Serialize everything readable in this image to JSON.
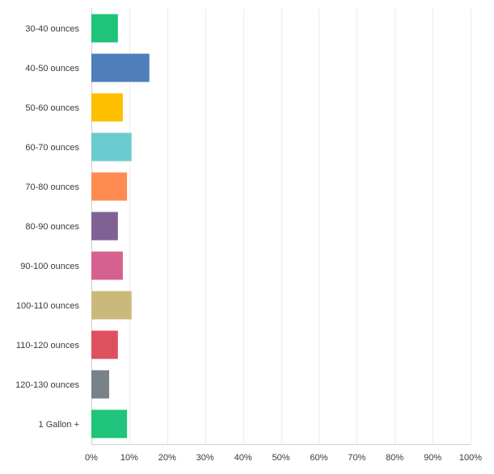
{
  "chart_data": {
    "type": "bar",
    "orientation": "horizontal",
    "categories": [
      "30-40 ounces",
      "40-50 ounces",
      "50-60 ounces",
      "60-70 ounces",
      "70-80 ounces",
      "80-90 ounces",
      "90-100 ounces",
      "100-110 ounces",
      "110-120 ounces",
      "120-130 ounces",
      "1 Gallon +"
    ],
    "values": [
      7,
      15.3,
      8.3,
      10.6,
      9.4,
      7,
      8.3,
      10.6,
      7,
      4.7,
      9.4
    ],
    "colors": [
      "#1fc379",
      "#4f7fbb",
      "#fdbf00",
      "#6ccbce",
      "#fe8c52",
      "#7f6196",
      "#d66191",
      "#cab97b",
      "#df505f",
      "#78828a",
      "#1fc379"
    ],
    "xlim": [
      0,
      100
    ],
    "x_ticks": [
      0,
      10,
      20,
      30,
      40,
      50,
      60,
      70,
      80,
      90,
      100
    ],
    "x_tick_labels": [
      "0%",
      "10%",
      "20%",
      "30%",
      "40%",
      "50%",
      "60%",
      "70%",
      "80%",
      "90%",
      "100%"
    ],
    "grid": true,
    "title": "",
    "xlabel": "",
    "ylabel": ""
  }
}
